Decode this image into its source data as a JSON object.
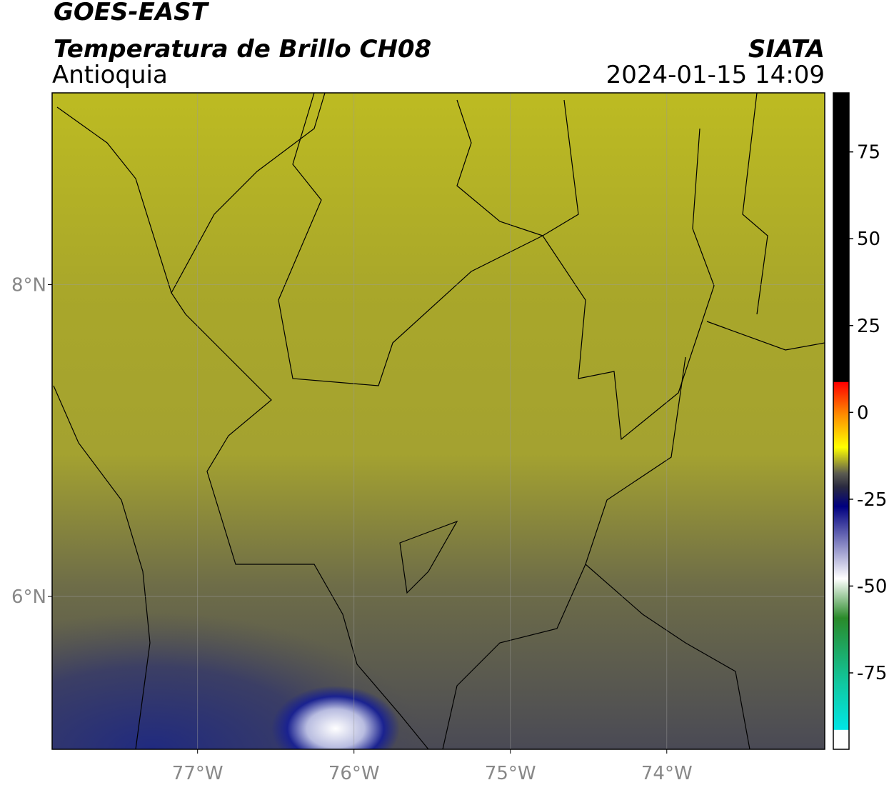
{
  "header": {
    "title": "GOES-EAST",
    "subtitle": "Temperatura de Brillo CH08",
    "region": "Antioquia",
    "source": "SIATA",
    "datetime": "2024-01-15 14:09"
  },
  "map": {
    "lonlim": [
      -77.93,
      -72.99
    ],
    "latlim": [
      5.02,
      9.23
    ],
    "lon_ticks": [
      {
        "value": -77,
        "label": "77°W"
      },
      {
        "value": -76,
        "label": "76°W"
      },
      {
        "value": -75,
        "label": "75°W"
      },
      {
        "value": -74,
        "label": "74°W"
      }
    ],
    "lat_ticks": [
      {
        "value": 8,
        "label": "8°N"
      },
      {
        "value": 6,
        "label": "6°N"
      }
    ],
    "grid": true
  },
  "colorbar": {
    "lim": [
      -97,
      92
    ],
    "ticks": [
      75,
      50,
      25,
      0,
      -25,
      -50,
      -75
    ]
  }
}
